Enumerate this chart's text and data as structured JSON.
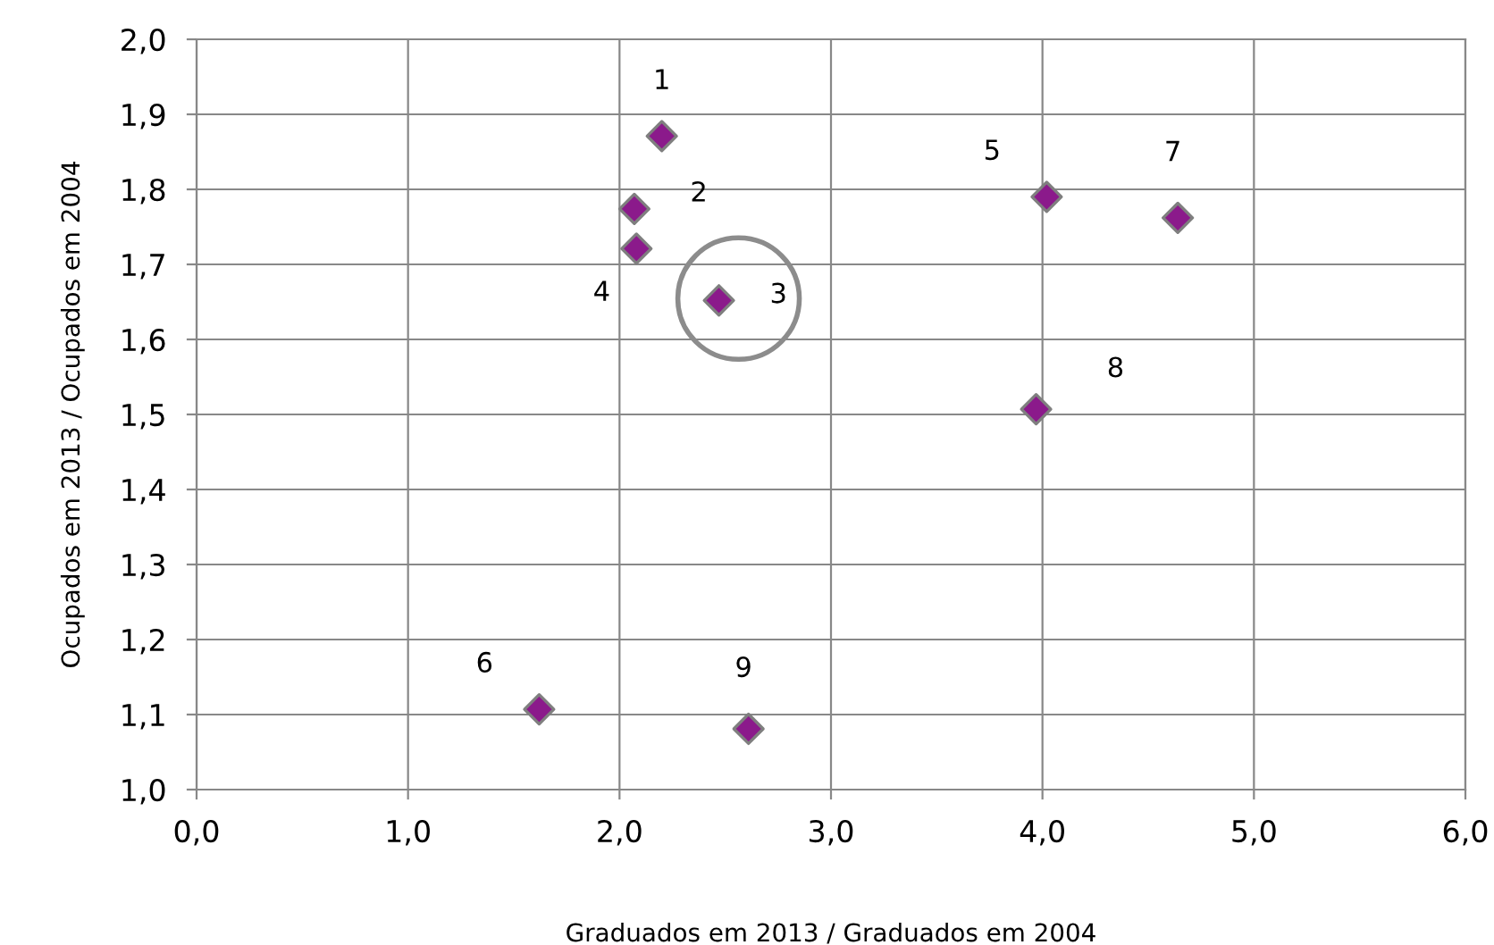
{
  "chart_data": {
    "type": "scatter",
    "xlabel": "Graduados em 2013 / Graduados em 2004",
    "ylabel": "Ocupados em 2013 / Ocupados em 2004",
    "x": [
      2.2,
      2.07,
      2.47,
      2.08,
      4.02,
      1.62,
      4.64,
      3.97,
      2.61
    ],
    "series": [
      {
        "color": "#8b1a8b",
        "values": [
          1.871,
          1.774,
          1.652,
          1.721,
          1.79,
          1.107,
          1.762,
          1.507,
          1.081
        ]
      }
    ],
    "annotations": [
      {
        "text": "1",
        "x": 2.2,
        "y": 1.871
      },
      {
        "text": "2",
        "x": 2.07,
        "y": 1.774
      },
      {
        "text": "3",
        "x": 2.47,
        "y": 1.652
      },
      {
        "text": "4",
        "x": 2.08,
        "y": 1.721
      },
      {
        "text": "5",
        "x": 4.02,
        "y": 1.79
      },
      {
        "text": "6",
        "x": 1.62,
        "y": 1.107
      },
      {
        "text": "7",
        "x": 4.64,
        "y": 1.762
      },
      {
        "text": "8",
        "x": 3.97,
        "y": 1.507
      },
      {
        "text": "9",
        "x": 2.61,
        "y": 1.081
      }
    ],
    "xlim": [
      0,
      6
    ],
    "ylim": [
      1.0,
      2.0
    ],
    "xticks": [
      {
        "value": 0,
        "label": "0,0"
      },
      {
        "value": 1,
        "label": "1,0"
      },
      {
        "value": 2,
        "label": "2,0"
      },
      {
        "value": 3,
        "label": "3,0"
      },
      {
        "value": 4,
        "label": "4,0"
      },
      {
        "value": 5,
        "label": "5,0"
      },
      {
        "value": 6,
        "label": "6,0"
      }
    ],
    "yticks": [
      {
        "value": 1.0,
        "label": "1,0"
      },
      {
        "value": 1.1,
        "label": "1,1"
      },
      {
        "value": 1.2,
        "label": "1,2"
      },
      {
        "value": 1.3,
        "label": "1,3"
      },
      {
        "value": 1.4,
        "label": "1,4"
      },
      {
        "value": 1.5,
        "label": "1,5"
      },
      {
        "value": 1.6,
        "label": "1,6"
      },
      {
        "value": 1.7,
        "label": "1,7"
      },
      {
        "value": 1.8,
        "label": "1,8"
      },
      {
        "value": 1.9,
        "label": "1,9"
      },
      {
        "value": 2.0,
        "label": "2,0"
      }
    ],
    "grid": true,
    "marker": "diamond"
  }
}
